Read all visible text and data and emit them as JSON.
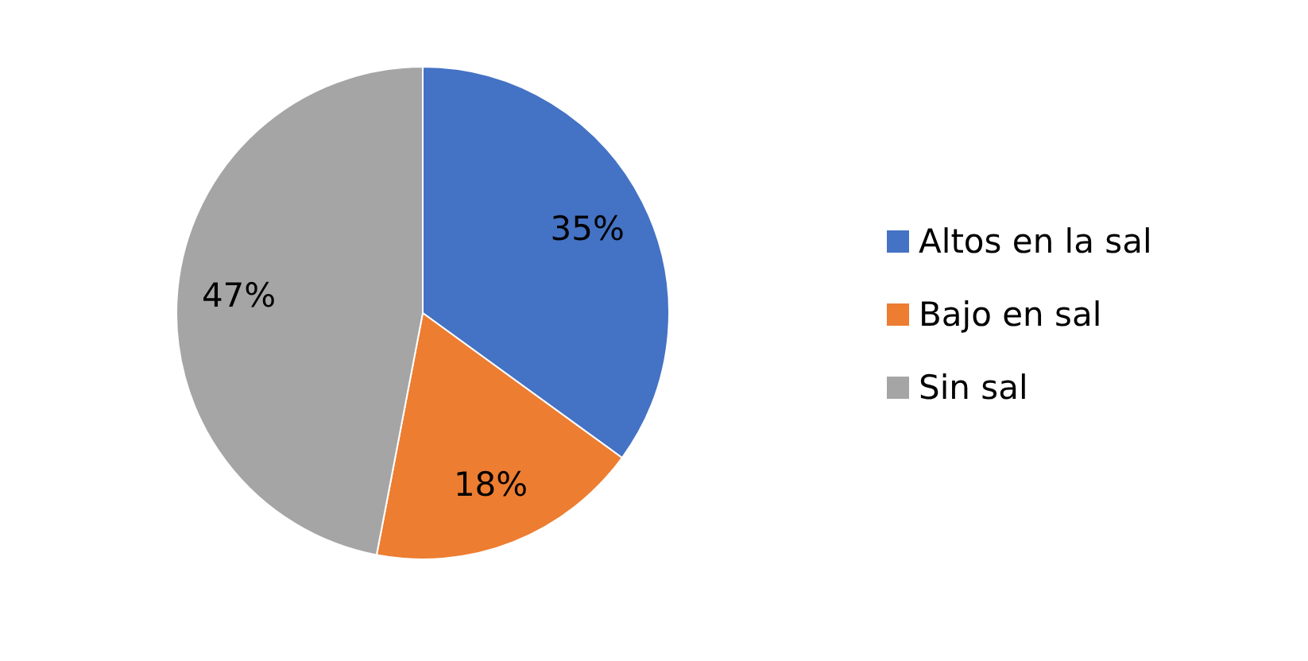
{
  "chart_data": {
    "type": "pie",
    "categories": [
      "Altos en la sal",
      "Bajo en sal",
      "Sin sal"
    ],
    "values": [
      35,
      18,
      47
    ],
    "colors": [
      "#4472c4",
      "#ed7d31",
      "#a5a5a5"
    ],
    "value_labels": [
      "35%",
      "18%",
      "47%"
    ],
    "legend": "right"
  }
}
